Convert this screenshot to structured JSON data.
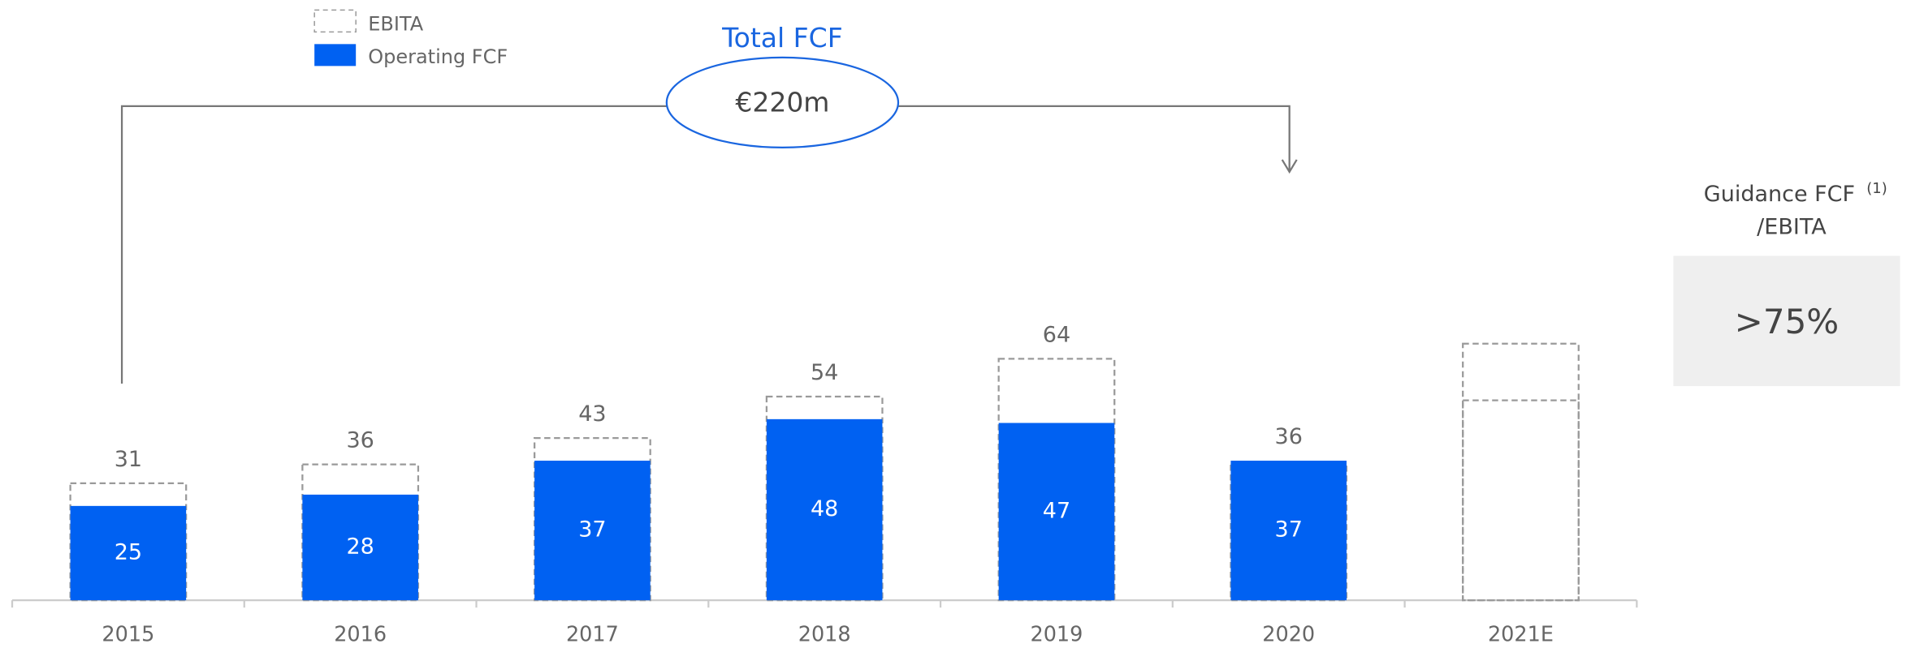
{
  "chart_data": {
    "type": "bar",
    "categories": [
      "2015",
      "2016",
      "2017",
      "2018",
      "2019",
      "2020",
      "2021E"
    ],
    "series": [
      {
        "name": "EBITA",
        "color": "#9a9a9a",
        "dashed": [
          true,
          true,
          true,
          true,
          true,
          true,
          true
        ],
        "values": [
          31,
          36,
          43,
          54,
          64,
          36,
          68
        ],
        "value_labels": [
          "31",
          "36",
          "43",
          "54",
          "64",
          "36",
          null
        ]
      },
      {
        "name": "Operating FCF",
        "color": "#0061f2",
        "dashed": [
          false,
          false,
          false,
          false,
          false,
          false,
          true
        ],
        "values": [
          25,
          28,
          37,
          48,
          47,
          37,
          53
        ],
        "value_labels": [
          "25",
          "28",
          "37",
          "48",
          "47",
          "37",
          null
        ]
      }
    ],
    "ylim": [
      0,
      100
    ],
    "grid": false,
    "total_fcf": {
      "title": "Total FCF",
      "value": "€220m"
    },
    "guidance": {
      "label": "Guidance FCF",
      "footnote": "(1)",
      "label2": "/EBITA",
      "value": ">75%"
    }
  }
}
